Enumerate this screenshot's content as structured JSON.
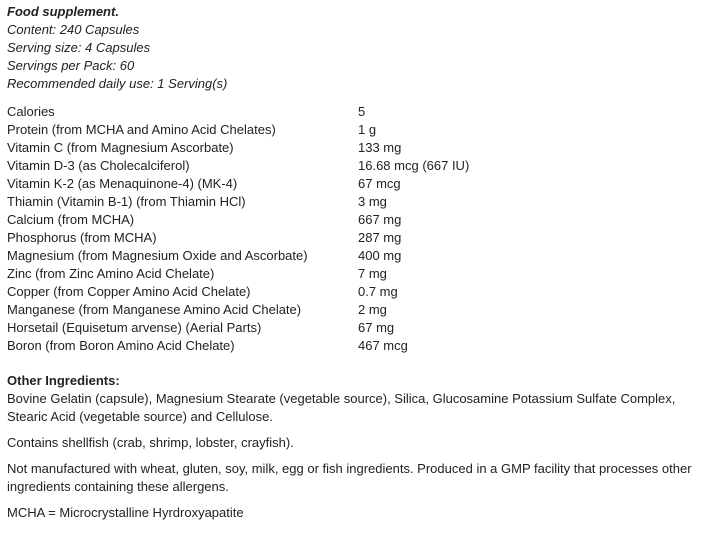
{
  "info": {
    "title": "Food supplement.",
    "content": "Content: 240 Capsules",
    "serving_size": "Serving size: 4 Capsules",
    "servings_per_pack": "Servings per Pack: 60",
    "recommended": "Recommended daily use: 1 Serving(s)"
  },
  "nutrients": [
    {
      "name": "Calories",
      "value": "5"
    },
    {
      "name": "Protein (from MCHA and Amino Acid Chelates)",
      "value": "1 g"
    },
    {
      "name": "Vitamin C (from Magnesium Ascorbate)",
      "value": "133 mg"
    },
    {
      "name": "Vitamin D-3 (as Cholecalciferol)",
      "value": "16.68 mcg (667 IU)"
    },
    {
      "name": "Vitamin K-2 (as Menaquinone-4) (MK-4)",
      "value": "67 mcg"
    },
    {
      "name": "Thiamin (Vitamin B-1) (from Thiamin HCl)",
      "value": "3 mg"
    },
    {
      "name": "Calcium (from MCHA)",
      "value": "667 mg"
    },
    {
      "name": "Phosphorus (from MCHA)",
      "value": "287 mg"
    },
    {
      "name": "Magnesium (from Magnesium Oxide and Ascorbate)",
      "value": "400 mg"
    },
    {
      "name": "Zinc (from Zinc Amino Acid Chelate)",
      "value": "7 mg"
    },
    {
      "name": "Copper (from Copper Amino Acid Chelate)",
      "value": "0.7 mg"
    },
    {
      "name": "Manganese (from Manganese Amino Acid Chelate)",
      "value": "2 mg"
    },
    {
      "name": "Horsetail (Equisetum arvense) (Aerial Parts)",
      "value": "67 mg"
    },
    {
      "name": "Boron (from Boron Amino Acid Chelate)",
      "value": "467 mcg"
    }
  ],
  "other": {
    "heading": "Other Ingredients:",
    "ingredients": "Bovine Gelatin (capsule), Magnesium Stearate (vegetable source), Silica, Glucosamine Potassium Sulfate Complex, Stearic Acid (vegetable source) and Cellulose.",
    "shellfish": "Contains shellfish (crab, shrimp, lobster, crayfish).",
    "allergens": "Not manufactured with wheat, gluten, soy, milk, egg or fish ingredients. Produced in a GMP facility that processes other ingredients containing these allergens.",
    "mcha": "MCHA = Microcrystalline Hyrdroxyapatite"
  }
}
